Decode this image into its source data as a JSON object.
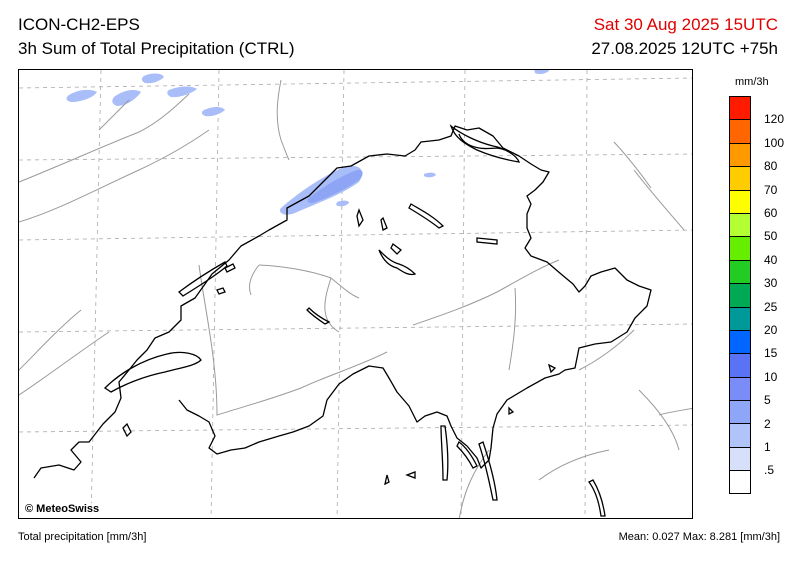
{
  "header": {
    "model": "ICON-CH2-EPS",
    "product": "3h Sum of Total Precipitation (CTRL)",
    "valid_time": "Sat 30 Aug 2025 15UTC",
    "run_time": "27.08.2025 12UTC +75h"
  },
  "map": {
    "copyright": "© MeteoSwiss"
  },
  "legend": {
    "unit": "mm/3h",
    "bins": [
      {
        "label": "120",
        "color": "#ff1a00"
      },
      {
        "label": "100",
        "color": "#ff6600"
      },
      {
        "label": "80",
        "color": "#ff9900"
      },
      {
        "label": "70",
        "color": "#ffcc00"
      },
      {
        "label": "60",
        "color": "#ffff00"
      },
      {
        "label": "50",
        "color": "#b3ff33"
      },
      {
        "label": "40",
        "color": "#66ee00"
      },
      {
        "label": "30",
        "color": "#22cc22"
      },
      {
        "label": "25",
        "color": "#00aa55"
      },
      {
        "label": "20",
        "color": "#009999"
      },
      {
        "label": "15",
        "color": "#0066ff"
      },
      {
        "label": "10",
        "color": "#5a73f5"
      },
      {
        "label": "5",
        "color": "#7a8cf7"
      },
      {
        "label": "2",
        "color": "#8ea6f7"
      },
      {
        "label": "1",
        "color": "#b0c4f9"
      },
      {
        "label": ".5",
        "color": "#d6e0fb"
      },
      {
        "label": "",
        "color": "#ffffff"
      }
    ]
  },
  "footer": {
    "left": "Total precipitation [mm/3h]",
    "stats": "Mean:  0.027 Max:  8.281 [mm/3h]"
  }
}
